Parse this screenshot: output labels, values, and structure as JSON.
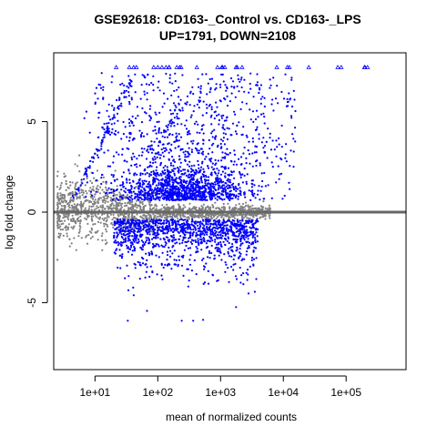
{
  "chart_data": {
    "type": "scatter",
    "title_line1": "GSE92618: CD163-_Control vs. CD163-_LPS",
    "title_line2": "UP=1791, DOWN=2108",
    "xlabel": "mean of normalized counts",
    "ylabel": "log fold change",
    "x_scale": "log10",
    "xlim": [
      2.2,
      900000
    ],
    "ylim": [
      -8.7,
      8.8
    ],
    "x_ticks": [
      10,
      100,
      1000,
      10000,
      100000
    ],
    "x_tick_labels": [
      "1e+01",
      "1e+02",
      "1e+03",
      "1e+04",
      "1e+05"
    ],
    "y_ticks": [
      -5,
      0,
      5
    ],
    "y_tick_labels": [
      "-5",
      "0",
      "5"
    ],
    "reference_line_y": 0,
    "cap_value": 8,
    "colors": {
      "significant": "#0000ff",
      "not_significant": "#808080",
      "reference_line": "#666666"
    },
    "series": [
      {
        "label": "significant",
        "count_up": 1791,
        "count_down": 2108,
        "color": "#0000ff"
      },
      {
        "label": "not_significant",
        "color": "#808080"
      }
    ]
  }
}
